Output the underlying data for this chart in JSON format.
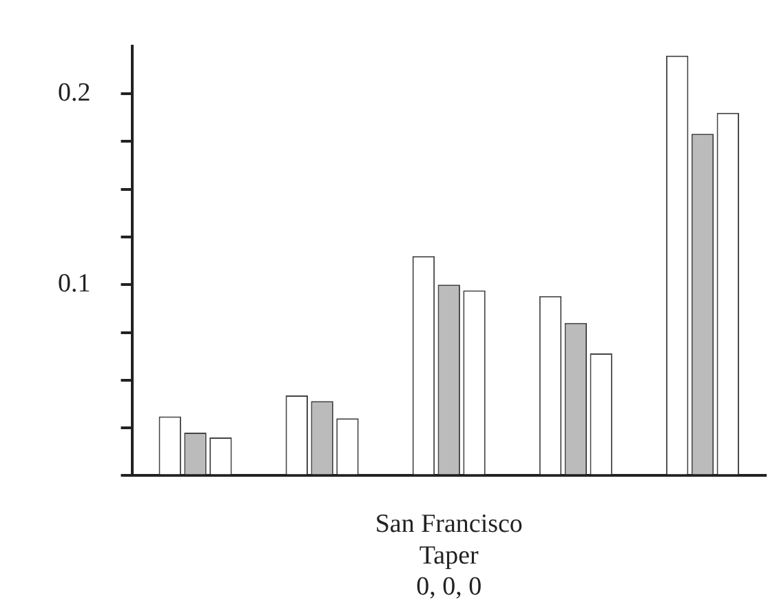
{
  "chart_data": {
    "type": "bar",
    "xlabel": "San Francisco\nTaper\n0, 0, 0",
    "categories": [
      null,
      null,
      null,
      null,
      null
    ],
    "series": [
      {
        "color": "#ffffff",
        "values": [
          0.031,
          0.042,
          0.115,
          0.094,
          0.22
        ]
      },
      {
        "color": "#bbbbbb",
        "values": [
          0.0225,
          0.039,
          0.1,
          0.08,
          0.179
        ]
      },
      {
        "color": "#ffffff",
        "values": [
          0.02,
          0.03,
          0.097,
          0.064,
          0.19
        ]
      }
    ],
    "ylim": [
      0,
      0.225
    ],
    "yticks": [
      {
        "value": 0,
        "label": null
      },
      {
        "value": 0.025,
        "label": null
      },
      {
        "value": 0.05,
        "label": null
      },
      {
        "value": 0.075,
        "label": null
      },
      {
        "value": 0.1,
        "label": "0.1"
      },
      {
        "value": 0.125,
        "label": null
      },
      {
        "value": 0.15,
        "label": null
      },
      {
        "value": 0.175,
        "label": null
      },
      {
        "value": 0.2,
        "label": "0.2"
      }
    ],
    "grid": false,
    "legend": false
  }
}
